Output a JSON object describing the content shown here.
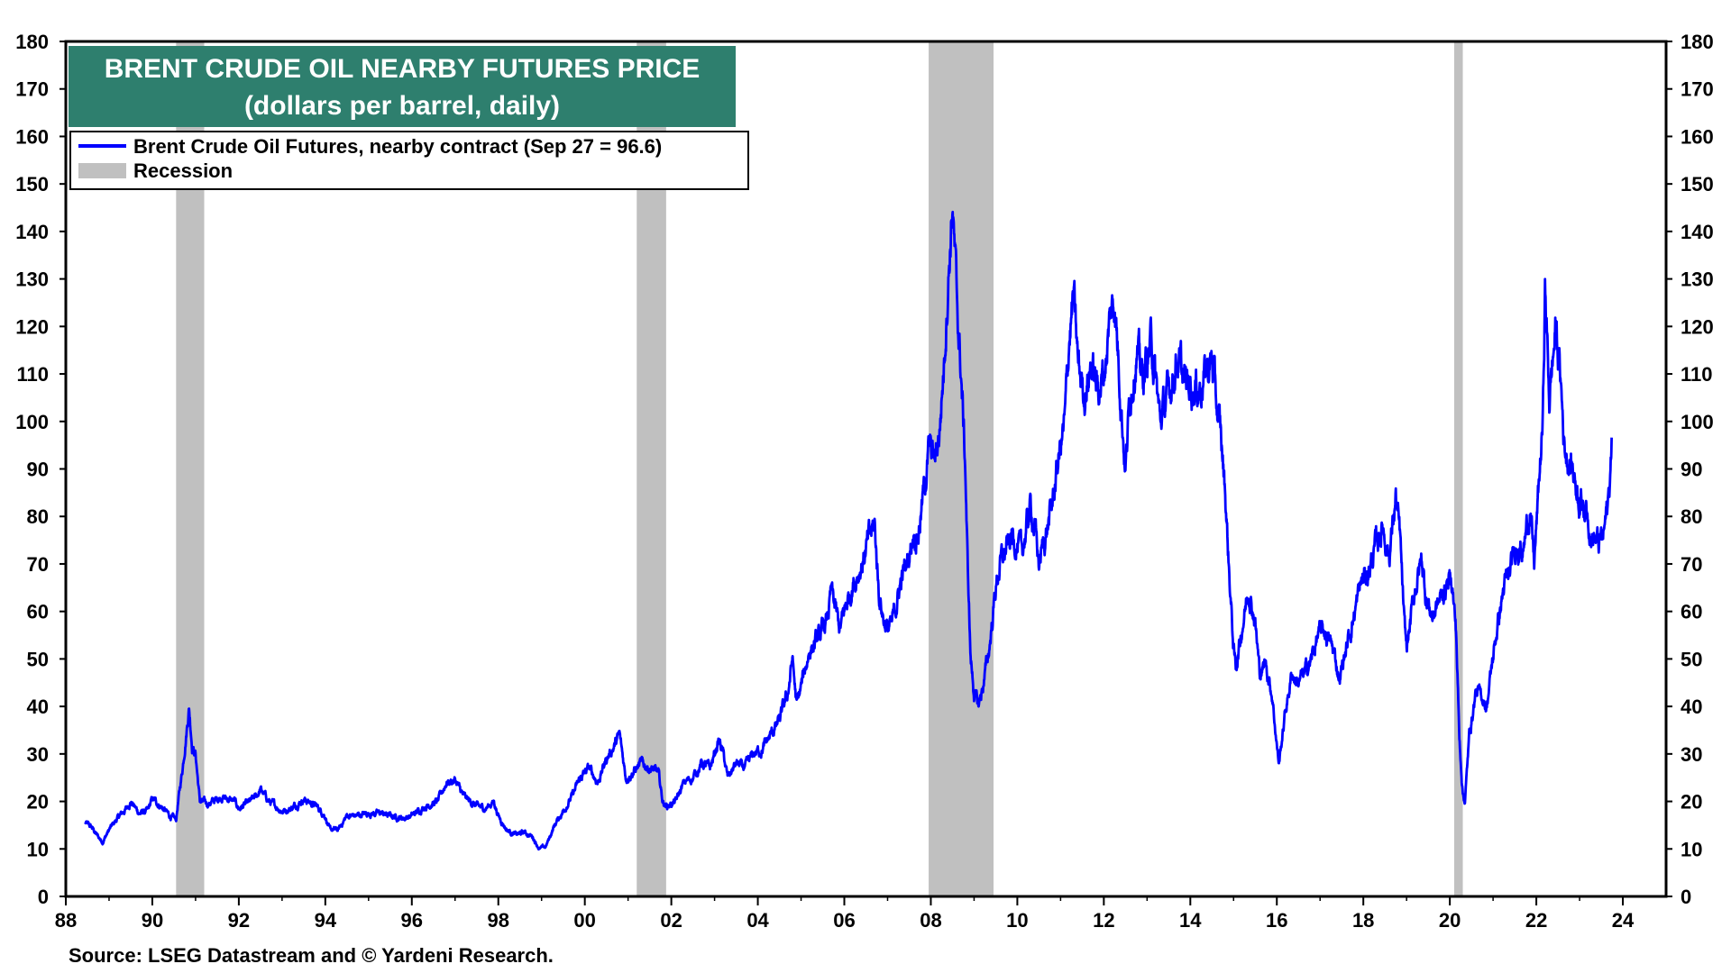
{
  "chart_data": {
    "type": "line",
    "title": "BRENT CRUDE OIL NEARBY FUTURES PRICE",
    "subtitle": "(dollars per barrel, daily)",
    "ylim": [
      0,
      180
    ],
    "xlim": [
      1988,
      2025
    ],
    "y_ticks": [
      0,
      10,
      20,
      30,
      40,
      50,
      60,
      70,
      80,
      90,
      100,
      110,
      120,
      130,
      140,
      150,
      160,
      170,
      180
    ],
    "x_ticks": [
      {
        "year": 1988,
        "label": "88"
      },
      {
        "year": 1990,
        "label": "90"
      },
      {
        "year": 1992,
        "label": "92"
      },
      {
        "year": 1994,
        "label": "94"
      },
      {
        "year": 1996,
        "label": "96"
      },
      {
        "year": 1998,
        "label": "98"
      },
      {
        "year": 2000,
        "label": "00"
      },
      {
        "year": 2002,
        "label": "02"
      },
      {
        "year": 2004,
        "label": "04"
      },
      {
        "year": 2006,
        "label": "06"
      },
      {
        "year": 2008,
        "label": "08"
      },
      {
        "year": 2010,
        "label": "10"
      },
      {
        "year": 2012,
        "label": "12"
      },
      {
        "year": 2014,
        "label": "14"
      },
      {
        "year": 2016,
        "label": "16"
      },
      {
        "year": 2018,
        "label": "18"
      },
      {
        "year": 2020,
        "label": "20"
      },
      {
        "year": 2022,
        "label": "22"
      },
      {
        "year": 2024,
        "label": "24"
      }
    ],
    "legend": [
      {
        "label": "Brent Crude Oil Futures, nearby contract (Sep 27 = 96.6)",
        "color": "#0000ff",
        "kind": "line"
      },
      {
        "label": "Recession",
        "color": "#c0c0c0",
        "kind": "band"
      }
    ],
    "legend_position": "top-left",
    "recessions": [
      [
        1990.55,
        1991.2
      ],
      [
        2001.2,
        2001.88
      ],
      [
        2007.95,
        2009.45
      ],
      [
        2020.1,
        2020.3
      ]
    ],
    "series": [
      {
        "name": "Brent Crude Oil Futures, nearby contract",
        "color": "#0000ff",
        "points": [
          [
            1988.45,
            15.5
          ],
          [
            1988.6,
            14.5
          ],
          [
            1988.75,
            12.5
          ],
          [
            1988.85,
            11.5
          ],
          [
            1989.0,
            14
          ],
          [
            1989.2,
            16.5
          ],
          [
            1989.4,
            18.5
          ],
          [
            1989.5,
            20
          ],
          [
            1989.7,
            17.5
          ],
          [
            1989.9,
            18
          ],
          [
            1990.0,
            20.5
          ],
          [
            1990.2,
            19
          ],
          [
            1990.4,
            17
          ],
          [
            1990.55,
            16
          ],
          [
            1990.6,
            20
          ],
          [
            1990.7,
            27
          ],
          [
            1990.78,
            34
          ],
          [
            1990.85,
            40
          ],
          [
            1990.92,
            32
          ],
          [
            1991.0,
            30
          ],
          [
            1991.05,
            25
          ],
          [
            1991.1,
            20
          ],
          [
            1991.3,
            19.5
          ],
          [
            1991.6,
            21
          ],
          [
            1991.9,
            20
          ],
          [
            1992.0,
            18.5
          ],
          [
            1992.2,
            19.5
          ],
          [
            1992.4,
            21
          ],
          [
            1992.5,
            22.5
          ],
          [
            1992.7,
            20
          ],
          [
            1993.0,
            18
          ],
          [
            1993.2,
            18.5
          ],
          [
            1993.5,
            20.5
          ],
          [
            1993.8,
            19
          ],
          [
            1994.0,
            17
          ],
          [
            1994.1,
            14
          ],
          [
            1994.3,
            14
          ],
          [
            1994.5,
            17
          ],
          [
            1994.7,
            17
          ],
          [
            1995.0,
            17.5
          ],
          [
            1995.3,
            17.5
          ],
          [
            1995.5,
            17
          ],
          [
            1995.8,
            16.5
          ],
          [
            1996.0,
            17
          ],
          [
            1996.3,
            19
          ],
          [
            1996.6,
            20
          ],
          [
            1996.8,
            24
          ],
          [
            1997.0,
            24.5
          ],
          [
            1997.2,
            21
          ],
          [
            1997.5,
            19
          ],
          [
            1997.7,
            18.5
          ],
          [
            1997.9,
            20
          ],
          [
            1998.0,
            17
          ],
          [
            1998.2,
            14
          ],
          [
            1998.4,
            13
          ],
          [
            1998.6,
            13.5
          ],
          [
            1998.8,
            12.5
          ],
          [
            1998.95,
            10
          ],
          [
            1999.1,
            10.5
          ],
          [
            1999.3,
            15
          ],
          [
            1999.5,
            18
          ],
          [
            1999.7,
            21
          ],
          [
            1999.9,
            25
          ],
          [
            2000.1,
            27
          ],
          [
            2000.3,
            24
          ],
          [
            2000.5,
            29
          ],
          [
            2000.7,
            32
          ],
          [
            2000.8,
            34
          ],
          [
            2000.95,
            25
          ],
          [
            2001.1,
            26
          ],
          [
            2001.3,
            28
          ],
          [
            2001.5,
            27
          ],
          [
            2001.7,
            26
          ],
          [
            2001.8,
            20
          ],
          [
            2001.9,
            19
          ],
          [
            2002.1,
            20
          ],
          [
            2002.3,
            24
          ],
          [
            2002.5,
            25
          ],
          [
            2002.7,
            28
          ],
          [
            2002.9,
            27
          ],
          [
            2003.1,
            33
          ],
          [
            2003.2,
            30
          ],
          [
            2003.3,
            25
          ],
          [
            2003.5,
            28
          ],
          [
            2003.7,
            27
          ],
          [
            2003.9,
            30
          ],
          [
            2004.1,
            31
          ],
          [
            2004.3,
            34
          ],
          [
            2004.5,
            37
          ],
          [
            2004.7,
            43
          ],
          [
            2004.8,
            50
          ],
          [
            2004.9,
            40
          ],
          [
            2005.0,
            44
          ],
          [
            2005.2,
            52
          ],
          [
            2005.4,
            54
          ],
          [
            2005.6,
            58
          ],
          [
            2005.7,
            64
          ],
          [
            2005.9,
            56
          ],
          [
            2006.0,
            60
          ],
          [
            2006.2,
            66
          ],
          [
            2006.4,
            70
          ],
          [
            2006.6,
            76
          ],
          [
            2006.7,
            78
          ],
          [
            2006.8,
            64
          ],
          [
            2006.9,
            59
          ],
          [
            2007.0,
            56
          ],
          [
            2007.1,
            57
          ],
          [
            2007.3,
            66
          ],
          [
            2007.5,
            72
          ],
          [
            2007.6,
            77
          ],
          [
            2007.7,
            76
          ],
          [
            2007.85,
            86
          ],
          [
            2007.95,
            94
          ],
          [
            2008.1,
            92
          ],
          [
            2008.2,
            98
          ],
          [
            2008.3,
            112
          ],
          [
            2008.4,
            130
          ],
          [
            2008.5,
            146
          ],
          [
            2008.6,
            125
          ],
          [
            2008.7,
            110
          ],
          [
            2008.8,
            90
          ],
          [
            2008.85,
            70
          ],
          [
            2008.92,
            50
          ],
          [
            2009.0,
            43
          ],
          [
            2009.1,
            40
          ],
          [
            2009.2,
            44
          ],
          [
            2009.35,
            52
          ],
          [
            2009.5,
            65
          ],
          [
            2009.6,
            70
          ],
          [
            2009.8,
            74
          ],
          [
            2009.9,
            76
          ],
          [
            2010.1,
            72
          ],
          [
            2010.3,
            82
          ],
          [
            2010.4,
            78
          ],
          [
            2010.5,
            70
          ],
          [
            2010.7,
            78
          ],
          [
            2010.8,
            82
          ],
          [
            2010.95,
            92
          ],
          [
            2011.1,
            100
          ],
          [
            2011.2,
            118
          ],
          [
            2011.3,
            126
          ],
          [
            2011.4,
            112
          ],
          [
            2011.55,
            106
          ],
          [
            2011.7,
            112
          ],
          [
            2011.85,
            107
          ],
          [
            2012.0,
            110
          ],
          [
            2012.15,
            122
          ],
          [
            2012.25,
            126
          ],
          [
            2012.4,
            105
          ],
          [
            2012.5,
            90
          ],
          [
            2012.6,
            105
          ],
          [
            2012.75,
            115
          ],
          [
            2012.9,
            109
          ],
          [
            2013.1,
            117
          ],
          [
            2013.3,
            100
          ],
          [
            2013.5,
            106
          ],
          [
            2013.7,
            114
          ],
          [
            2013.85,
            108
          ],
          [
            2014.0,
            108
          ],
          [
            2014.2,
            107
          ],
          [
            2014.5,
            113
          ],
          [
            2014.6,
            104
          ],
          [
            2014.7,
            97
          ],
          [
            2014.8,
            86
          ],
          [
            2014.9,
            68
          ],
          [
            2015.0,
            52
          ],
          [
            2015.05,
            48
          ],
          [
            2015.2,
            57
          ],
          [
            2015.35,
            65
          ],
          [
            2015.5,
            58
          ],
          [
            2015.6,
            47
          ],
          [
            2015.75,
            49
          ],
          [
            2015.9,
            42
          ],
          [
            2016.0,
            32
          ],
          [
            2016.05,
            28
          ],
          [
            2016.2,
            39
          ],
          [
            2016.35,
            47
          ],
          [
            2016.5,
            45
          ],
          [
            2016.65,
            47
          ],
          [
            2016.8,
            50
          ],
          [
            2016.95,
            55
          ],
          [
            2017.1,
            56
          ],
          [
            2017.3,
            52
          ],
          [
            2017.45,
            46
          ],
          [
            2017.6,
            52
          ],
          [
            2017.8,
            60
          ],
          [
            2017.95,
            66
          ],
          [
            2018.1,
            68
          ],
          [
            2018.3,
            74
          ],
          [
            2018.45,
            78
          ],
          [
            2018.6,
            72
          ],
          [
            2018.75,
            84
          ],
          [
            2018.85,
            75
          ],
          [
            2018.95,
            56
          ],
          [
            2019.0,
            52
          ],
          [
            2019.2,
            65
          ],
          [
            2019.35,
            71
          ],
          [
            2019.45,
            63
          ],
          [
            2019.6,
            59
          ],
          [
            2019.75,
            62
          ],
          [
            2019.95,
            66
          ],
          [
            2020.05,
            67
          ],
          [
            2020.15,
            55
          ],
          [
            2020.22,
            33
          ],
          [
            2020.3,
            22
          ],
          [
            2020.35,
            20
          ],
          [
            2020.45,
            34
          ],
          [
            2020.6,
            43
          ],
          [
            2020.75,
            42
          ],
          [
            2020.85,
            40
          ],
          [
            2020.95,
            47
          ],
          [
            2021.1,
            57
          ],
          [
            2021.25,
            65
          ],
          [
            2021.4,
            68
          ],
          [
            2021.55,
            75
          ],
          [
            2021.7,
            73
          ],
          [
            2021.85,
            82
          ],
          [
            2021.95,
            70
          ],
          [
            2022.05,
            85
          ],
          [
            2022.15,
            100
          ],
          [
            2022.2,
            128
          ],
          [
            2022.3,
            105
          ],
          [
            2022.45,
            120
          ],
          [
            2022.55,
            110
          ],
          [
            2022.65,
            95
          ],
          [
            2022.75,
            92
          ],
          [
            2022.85,
            90
          ],
          [
            2023.0,
            84
          ],
          [
            2023.15,
            82
          ],
          [
            2023.3,
            76
          ],
          [
            2023.45,
            74
          ],
          [
            2023.55,
            76
          ],
          [
            2023.65,
            82
          ],
          [
            2023.72,
            90
          ],
          [
            2023.74,
            96.6
          ]
        ]
      }
    ],
    "source": "Source: LSEG Datastream and © Yardeni Research."
  }
}
